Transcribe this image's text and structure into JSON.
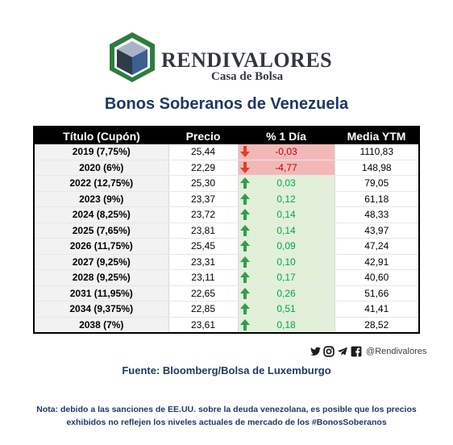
{
  "brand": {
    "name": "RENDIVALORES",
    "subtitle": "Casa de Bolsa"
  },
  "title": "Bonos Soberanos de Venezuela",
  "table": {
    "headers": [
      "Título (Cupón)",
      "Precio",
      "% 1 Día",
      "Media YTM"
    ],
    "rows": [
      {
        "title": "2019 (7,75%)",
        "price": "25,44",
        "change": "-0,03",
        "direction": "down",
        "ytm": "1110,83"
      },
      {
        "title": "2020 (6%)",
        "price": "22,29",
        "change": "-4,77",
        "direction": "down",
        "ytm": "148,98"
      },
      {
        "title": "2022 (12,75%)",
        "price": "25,30",
        "change": "0,03",
        "direction": "up",
        "ytm": "79,05"
      },
      {
        "title": "2023 (9%)",
        "price": "23,37",
        "change": "0,12",
        "direction": "up",
        "ytm": "61,18"
      },
      {
        "title": "2024 (8,25%)",
        "price": "23,72",
        "change": "0,14",
        "direction": "up",
        "ytm": "48,33"
      },
      {
        "title": "2025 (7,65%)",
        "price": "23,81",
        "change": "0,14",
        "direction": "up",
        "ytm": "43,97"
      },
      {
        "title": "2026 (11,75%)",
        "price": "25,45",
        "change": "0,09",
        "direction": "up",
        "ytm": "47,24"
      },
      {
        "title": "2027 (9,25%)",
        "price": "23,31",
        "change": "0,10",
        "direction": "up",
        "ytm": "42,91"
      },
      {
        "title": "2028 (9,25%)",
        "price": "23,11",
        "change": "0,17",
        "direction": "up",
        "ytm": "40,60"
      },
      {
        "title": "2031 (11,95%)",
        "price": "22,65",
        "change": "0,26",
        "direction": "up",
        "ytm": "51,66"
      },
      {
        "title": "2034 (9,375%)",
        "price": "22,85",
        "change": "0,51",
        "direction": "up",
        "ytm": "41,41"
      },
      {
        "title": "2038 (7%)",
        "price": "23,61",
        "change": "0,18",
        "direction": "up",
        "ytm": "28,52"
      }
    ]
  },
  "social": {
    "icons": [
      "twitter-icon",
      "instagram-icon",
      "telegram-icon",
      "facebook-icon"
    ],
    "handle": "@Rendivalores"
  },
  "source": "Fuente: Bloomberg/Bolsa de Luxemburgo",
  "note": "Nota: debido a las sanciones de EE.UU. sobre la deuda venezolana, es posible que los precios exhibidos no reflejen los niveles actuales de mercado de los #BonosSoberanos",
  "colors": {
    "brand_navy": "#1f3864",
    "logo_green": "#2e7d3e",
    "negative_fill": "#f2b8b8",
    "negative_text": "#c00000",
    "positive_fill": "#e2efd9",
    "positive_text": "#00a650",
    "arrow_down": "#e0401e",
    "arrow_up": "#2e9f4f"
  }
}
